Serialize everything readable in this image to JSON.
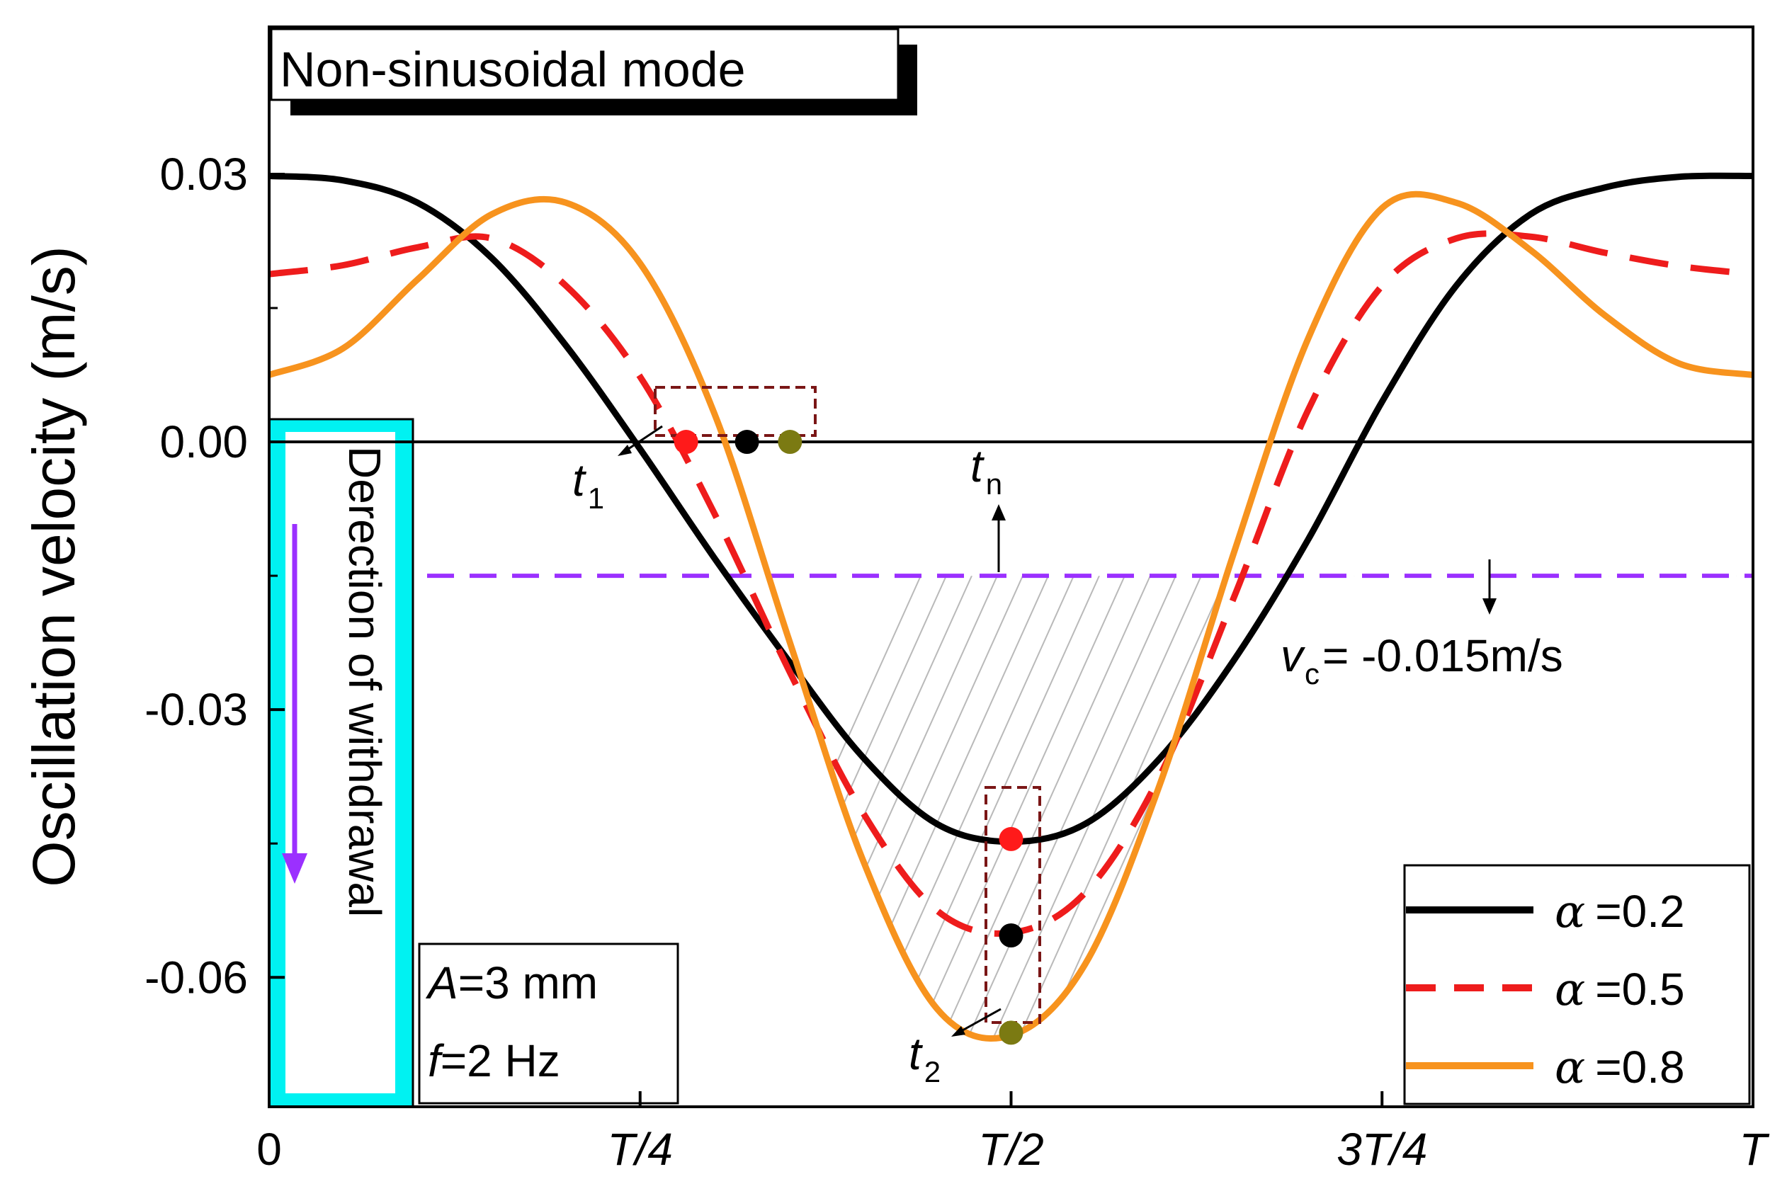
{
  "chart_data": {
    "type": "line",
    "title": "Non-sinusoidal mode",
    "xlabel": "",
    "ylabel": "Oscillation velocity (m/s)",
    "xlim": [
      0,
      1
    ],
    "ylim": [
      -0.0745,
      0.0465
    ],
    "x_ticks": [
      {
        "value": 0,
        "label": "0"
      },
      {
        "value": 0.25,
        "label": "T/4"
      },
      {
        "value": 0.5,
        "label": "T/2"
      },
      {
        "value": 0.75,
        "label": "3T/4"
      },
      {
        "value": 1,
        "label": "T"
      }
    ],
    "y_ticks": [
      {
        "value": 0.03,
        "label": "0.03"
      },
      {
        "value": 0.0,
        "label": "0.00"
      },
      {
        "value": -0.03,
        "label": "-0.03"
      },
      {
        "value": -0.06,
        "label": "-0.06"
      }
    ],
    "series": [
      {
        "name": "α =0.2",
        "legend_symbol": "α",
        "legend_value": "=0.2",
        "color": "#000000",
        "dash": "solid",
        "x": [
          0,
          0.05,
          0.1,
          0.15,
          0.2,
          0.25,
          0.3,
          0.35,
          0.4,
          0.45,
          0.5,
          0.55,
          0.6,
          0.65,
          0.7,
          0.75,
          0.8,
          0.85,
          0.9,
          0.95,
          1
        ],
        "y": [
          0.0298,
          0.0293,
          0.0268,
          0.0206,
          0.0108,
          -0.0008,
          -0.013,
          -0.0245,
          -0.0353,
          -0.0428,
          -0.0448,
          -0.0428,
          -0.0355,
          -0.0245,
          -0.011,
          0.0045,
          0.0175,
          0.0255,
          0.0285,
          0.0297,
          0.0298
        ]
      },
      {
        "name": "α =0.5",
        "legend_symbol": "α",
        "legend_value": "=0.5",
        "color": "#ee1c1c",
        "dash": "dashed",
        "x": [
          0,
          0.05,
          0.1,
          0.15,
          0.2,
          0.25,
          0.3,
          0.35,
          0.4,
          0.45,
          0.5,
          0.55,
          0.6,
          0.65,
          0.7,
          0.75,
          0.8,
          0.85,
          0.9,
          0.95,
          1
        ],
        "y": [
          0.0188,
          0.0198,
          0.0218,
          0.0228,
          0.0175,
          0.0073,
          -0.008,
          -0.0255,
          -0.0415,
          -0.0525,
          -0.055,
          -0.0505,
          -0.0375,
          -0.0175,
          0.0035,
          0.0175,
          0.0228,
          0.023,
          0.0212,
          0.0197,
          0.0188
        ]
      },
      {
        "name": "α =0.8",
        "legend_symbol": "α",
        "legend_value": "=0.8",
        "color": "#f7931e",
        "dash": "solid",
        "x": [
          0,
          0.05,
          0.1,
          0.15,
          0.2,
          0.25,
          0.3,
          0.35,
          0.4,
          0.45,
          0.5,
          0.55,
          0.6,
          0.65,
          0.7,
          0.75,
          0.8,
          0.85,
          0.9,
          0.95,
          1
        ],
        "y": [
          0.0075,
          0.0105,
          0.0182,
          0.0255,
          0.0268,
          0.02,
          0.0032,
          -0.022,
          -0.0468,
          -0.0635,
          -0.0665,
          -0.0585,
          -0.0385,
          -0.0125,
          0.0115,
          0.0262,
          0.0268,
          0.0215,
          0.0142,
          0.0088,
          0.0075
        ]
      }
    ],
    "threshold": {
      "value": -0.015,
      "color": "#9b30ff",
      "label_symbol": "v",
      "label_sub": "c",
      "label_rest": "= -0.015m/s"
    },
    "markers": [
      {
        "x": 0.281,
        "y": 0.0,
        "color": "#ff1a1a"
      },
      {
        "x": 0.322,
        "y": 0.0,
        "color": "#000000"
      },
      {
        "x": 0.351,
        "y": 0.0,
        "color": "#7b7a12"
      },
      {
        "x": 0.5,
        "y": -0.0445,
        "color": "#ff1a1a"
      },
      {
        "x": 0.5,
        "y": -0.0553,
        "color": "#000000"
      },
      {
        "x": 0.5,
        "y": -0.0662,
        "color": "#7b7a12"
      }
    ],
    "annotations": {
      "t1": {
        "symbol": "t",
        "sub": "1"
      },
      "t2": {
        "symbol": "t",
        "sub": "2"
      },
      "tn": {
        "symbol": "t",
        "sub": "n"
      },
      "withdrawal": "Derection of withdrawal",
      "params": {
        "A_sym": "A",
        "A_rest": "=3 mm",
        "f_sym": "f",
        "f_rest": "=2 Hz"
      }
    },
    "legend_position": "bottom-right",
    "grid": false
  }
}
